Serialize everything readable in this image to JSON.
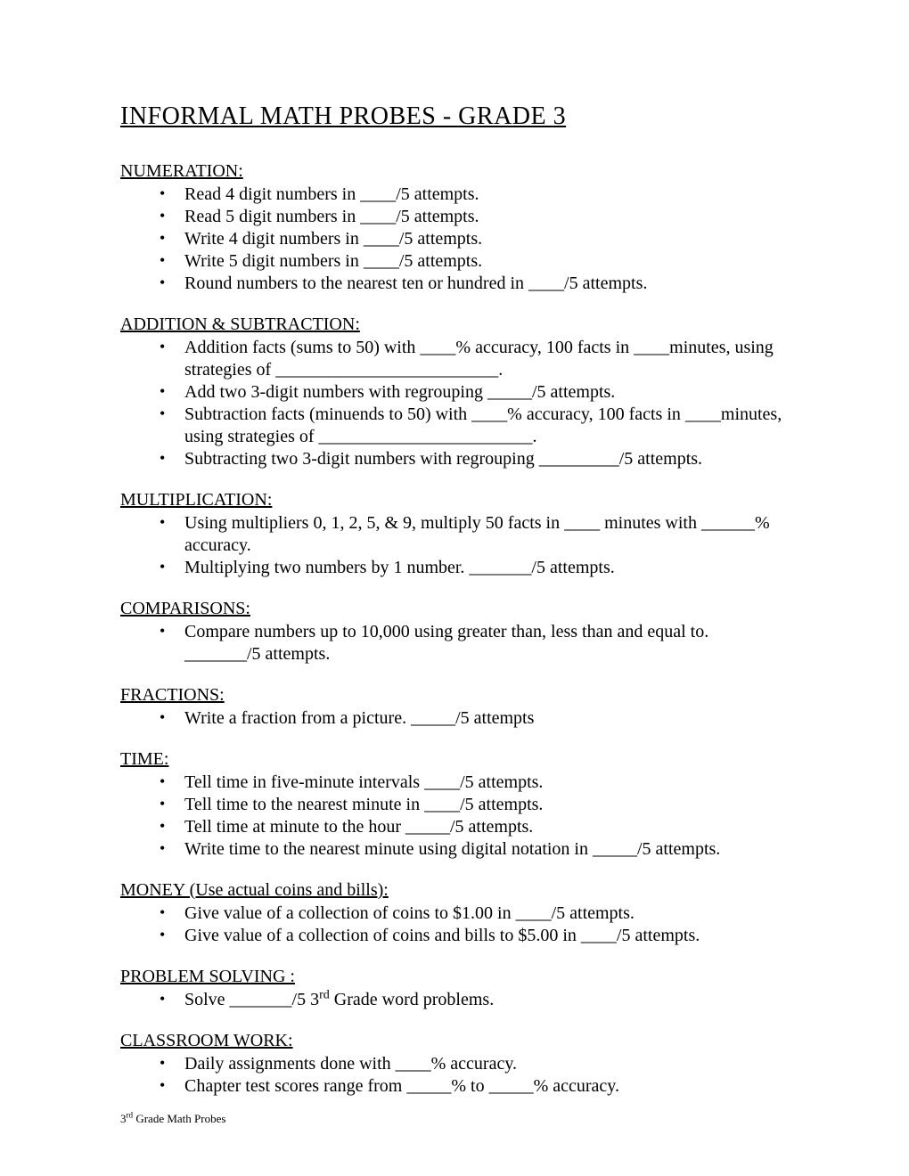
{
  "title": "INFORMAL MATH PROBES  -  GRADE 3",
  "sections": {
    "numeration": {
      "heading": "NUMERATION:",
      "items": [
        "Read 4 digit numbers in ____/5 attempts.",
        "Read 5 digit numbers in ____/5 attempts.",
        "Write 4 digit numbers in ____/5 attempts.",
        "Write 5 digit numbers in ____/5 attempts.",
        "Round numbers to the nearest ten or hundred in ____/5 attempts."
      ]
    },
    "addition_subtraction": {
      "heading": "ADDITION & SUBTRACTION:",
      "items": [
        "Addition facts (sums to 50) with ____% accuracy, 100 facts in ____minutes, using strategies of _________________________.",
        "Add two 3-digit numbers with regrouping _____/5 attempts.",
        "Subtraction facts (minuends to 50) with ____% accuracy, 100 facts in ____minutes, using strategies of ________________________.",
        "Subtracting two 3-digit numbers with regrouping _________/5 attempts."
      ]
    },
    "multiplication": {
      "heading": "MULTIPLICATION:",
      "items": [
        "Using multipliers 0, 1, 2, 5, & 9, multiply 50 facts in ____ minutes with ______% accuracy.",
        "Multiplying two numbers by 1 number.   _______/5 attempts."
      ]
    },
    "comparisons": {
      "heading": "COMPARISONS:",
      "items": [
        "Compare numbers up to 10,000 using greater than, less than and equal to. _______/5 attempts."
      ]
    },
    "fractions": {
      "heading": "FRACTIONS:",
      "items": [
        "Write a fraction from a picture. _____/5 attempts"
      ]
    },
    "time": {
      "heading": "TIME: ",
      "items": [
        "Tell time in five-minute intervals ____/5 attempts.",
        "Tell time to the nearest minute in ____/5 attempts.",
        "Tell time at minute to the hour  _____/5 attempts.",
        "Write time to the nearest minute using digital notation in _____/5 attempts."
      ]
    },
    "money": {
      "heading": "MONEY (Use actual coins and bills):",
      "items": [
        "Give value of a collection of coins to $1.00 in ____/5 attempts.",
        "Give value of a collection of coins and bills to $5.00 in ____/5 attempts."
      ]
    },
    "problem_solving": {
      "heading": "PROBLEM SOLVING :",
      "items_html": [
        "Solve _______/5 3<span class=\"sup\">rd</span> Grade word problems."
      ]
    },
    "classroom_work": {
      "heading": "CLASSROOM WORK:",
      "items": [
        "Daily assignments done with ____% accuracy.",
        "Chapter test scores range from _____% to _____% accuracy."
      ]
    }
  },
  "footer_html": "3<span class=\"sup\">rd</span> Grade Math Probes"
}
